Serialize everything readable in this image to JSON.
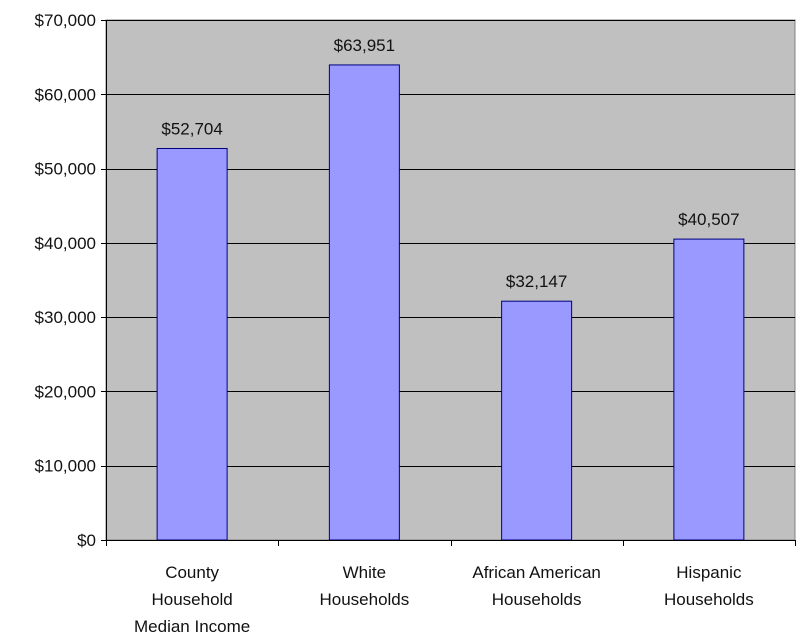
{
  "chart_data": {
    "type": "bar",
    "categories": [
      [
        "County",
        "Household",
        "Median Income"
      ],
      [
        "White",
        "Households"
      ],
      [
        "African American",
        "Households"
      ],
      [
        "Hispanic",
        "Households"
      ]
    ],
    "values": [
      52704,
      63951,
      32147,
      40507
    ],
    "data_labels": [
      "$52,704",
      "$63,951",
      "$32,147",
      "$40,507"
    ],
    "y_ticks": [
      0,
      10000,
      20000,
      30000,
      40000,
      50000,
      60000,
      70000
    ],
    "y_tick_labels": [
      "$0",
      "$10,000",
      "$20,000",
      "$30,000",
      "$40,000",
      "$50,000",
      "$60,000",
      "$70,000"
    ],
    "ylim": [
      0,
      70000
    ],
    "grid": true,
    "colors": {
      "plot_background": "#c0c0c0",
      "bar_fill": "#9999ff",
      "bar_stroke": "#000080",
      "gridline": "#000000"
    }
  }
}
